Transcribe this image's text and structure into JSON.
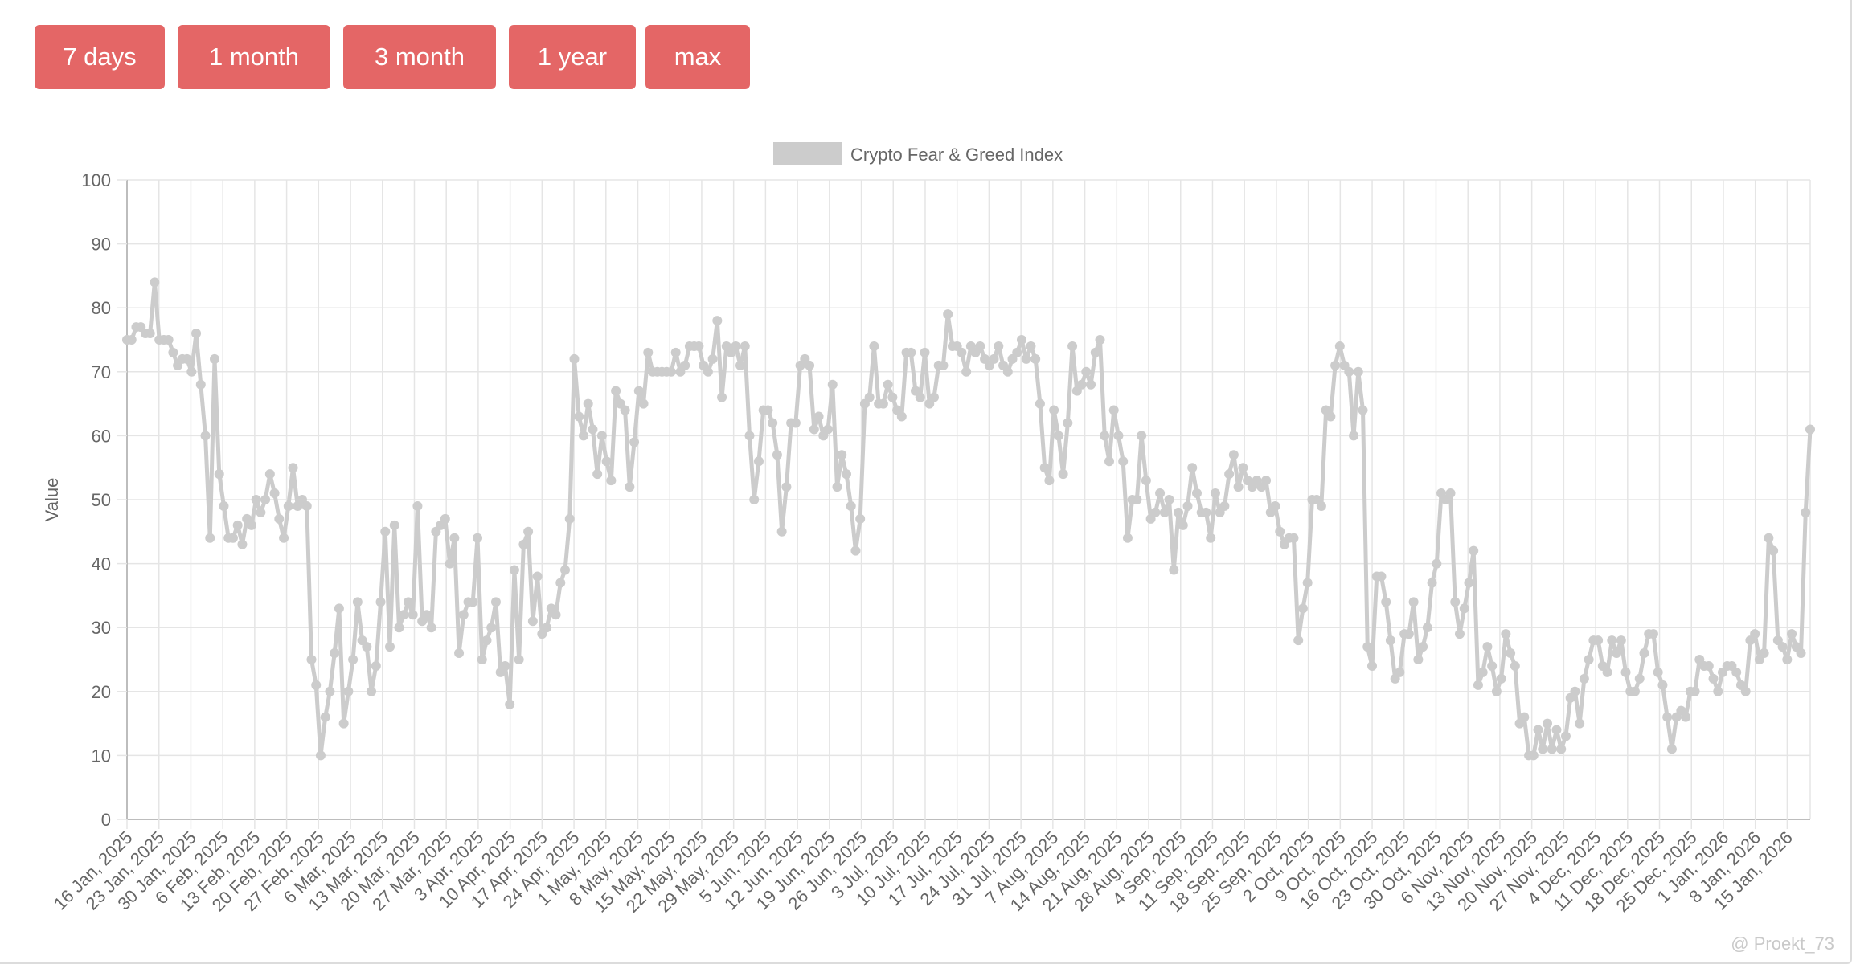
{
  "toolbar": {
    "buttons": [
      "7 days",
      "1 month",
      "3 month",
      "1 year",
      "max"
    ]
  },
  "colors": {
    "button_bg": "#e46666",
    "button_text": "#ffffff",
    "series_line": "#cccccc",
    "grid": "#e5e5e5",
    "axis_text": "#666666"
  },
  "watermark": "@ Proekt_73",
  "chart_data": {
    "type": "line",
    "title": "",
    "xlabel": "",
    "ylabel": "Value",
    "ylim": [
      0,
      100
    ],
    "yticks": [
      0,
      10,
      20,
      30,
      40,
      50,
      60,
      70,
      80,
      90,
      100
    ],
    "grid": true,
    "legend_position": "top-center",
    "x_tick_labels": [
      "16 Jan, 2025",
      "23 Jan, 2025",
      "30 Jan, 2025",
      "6 Feb, 2025",
      "13 Feb, 2025",
      "20 Feb, 2025",
      "27 Feb, 2025",
      "6 Mar, 2025",
      "13 Mar, 2025",
      "20 Mar, 2025",
      "27 Mar, 2025",
      "3 Apr, 2025",
      "10 Apr, 2025",
      "17 Apr, 2025",
      "24 Apr, 2025",
      "1 May, 2025",
      "8 May, 2025",
      "15 May, 2025",
      "22 May, 2025",
      "29 May, 2025",
      "5 Jun, 2025",
      "12 Jun, 2025",
      "19 Jun, 2025",
      "26 Jun, 2025",
      "3 Jul, 2025",
      "10 Jul, 2025",
      "17 Jul, 2025",
      "24 Jul, 2025",
      "31 Jul, 2025",
      "7 Aug, 2025",
      "14 Aug, 2025",
      "21 Aug, 2025",
      "28 Aug, 2025",
      "4 Sep, 2025",
      "11 Sep, 2025",
      "18 Sep, 2025",
      "25 Sep, 2025",
      "2 Oct, 2025",
      "9 Oct, 2025",
      "16 Oct, 2025",
      "23 Oct, 2025",
      "30 Oct, 2025",
      "6 Nov, 2025",
      "13 Nov, 2025",
      "20 Nov, 2025",
      "27 Nov, 2025",
      "4 Dec, 2025",
      "11 Dec, 2025",
      "18 Dec, 2025",
      "25 Dec, 2025",
      "1 Jan, 2026",
      "8 Jan, 2026",
      "15 Jan, 2026"
    ],
    "series": [
      {
        "name": "Crypto Fear & Greed Index",
        "x_start": "16 Jan, 2025",
        "x_step_days": 1,
        "values": [
          75,
          75,
          77,
          77,
          76,
          76,
          84,
          75,
          75,
          75,
          73,
          71,
          72,
          72,
          70,
          76,
          68,
          60,
          44,
          72,
          54,
          49,
          44,
          44,
          46,
          43,
          47,
          46,
          50,
          48,
          50,
          54,
          51,
          47,
          44,
          49,
          55,
          49,
          50,
          49,
          25,
          21,
          10,
          16,
          20,
          26,
          33,
          15,
          20,
          25,
          34,
          28,
          27,
          20,
          24,
          34,
          45,
          27,
          46,
          30,
          32,
          34,
          32,
          49,
          31,
          32,
          30,
          45,
          46,
          47,
          40,
          44,
          26,
          32,
          34,
          34,
          44,
          25,
          28,
          30,
          34,
          23,
          24,
          18,
          39,
          25,
          43,
          45,
          31,
          38,
          29,
          30,
          33,
          32,
          37,
          39,
          47,
          72,
          63,
          60,
          65,
          61,
          54,
          60,
          56,
          53,
          67,
          65,
          64,
          52,
          59,
          67,
          65,
          73,
          70,
          70,
          70,
          70,
          70,
          73,
          70,
          71,
          74,
          74,
          74,
          71,
          70,
          72,
          78,
          66,
          74,
          73,
          74,
          71,
          74,
          60,
          50,
          56,
          64,
          64,
          62,
          57,
          45,
          52,
          62,
          62,
          71,
          72,
          71,
          61,
          63,
          60,
          61,
          68,
          52,
          57,
          54,
          49,
          42,
          47,
          65,
          66,
          74,
          65,
          65,
          68,
          66,
          64,
          63,
          73,
          73,
          67,
          66,
          73,
          65,
          66,
          71,
          71,
          79,
          74,
          74,
          73,
          70,
          74,
          73,
          74,
          72,
          71,
          72,
          74,
          71,
          70,
          72,
          73,
          75,
          72,
          74,
          72,
          65,
          55,
          53,
          64,
          60,
          54,
          62,
          74,
          67,
          68,
          70,
          68,
          73,
          75,
          60,
          56,
          64,
          60,
          56,
          44,
          50,
          50,
          60,
          53,
          47,
          48,
          51,
          48,
          50,
          39,
          48,
          46,
          49,
          55,
          51,
          48,
          48,
          44,
          51,
          48,
          49,
          54,
          57,
          52,
          55,
          53,
          52,
          53,
          52,
          53,
          48,
          49,
          45,
          43,
          44,
          44,
          28,
          33,
          37,
          50,
          50,
          49,
          64,
          63,
          71,
          74,
          71,
          70,
          60,
          70,
          64,
          27,
          24,
          38,
          38,
          34,
          28,
          22,
          23,
          29,
          29,
          34,
          25,
          27,
          30,
          37,
          40,
          51,
          50,
          51,
          34,
          29,
          33,
          37,
          42,
          21,
          23,
          27,
          24,
          20,
          22,
          29,
          26,
          24,
          15,
          16,
          10,
          10,
          14,
          11,
          15,
          11,
          14,
          11,
          13,
          19,
          20,
          15,
          22,
          25,
          28,
          28,
          24,
          23,
          28,
          26,
          28,
          23,
          20,
          20,
          22,
          26,
          29,
          29,
          23,
          21,
          16,
          11,
          16,
          17,
          16,
          20,
          20,
          25,
          24,
          24,
          22,
          20,
          23,
          24,
          24,
          23,
          21,
          20,
          28,
          29,
          25,
          26,
          44,
          42,
          28,
          27,
          25,
          29,
          27,
          26,
          48,
          61
        ]
      }
    ]
  }
}
